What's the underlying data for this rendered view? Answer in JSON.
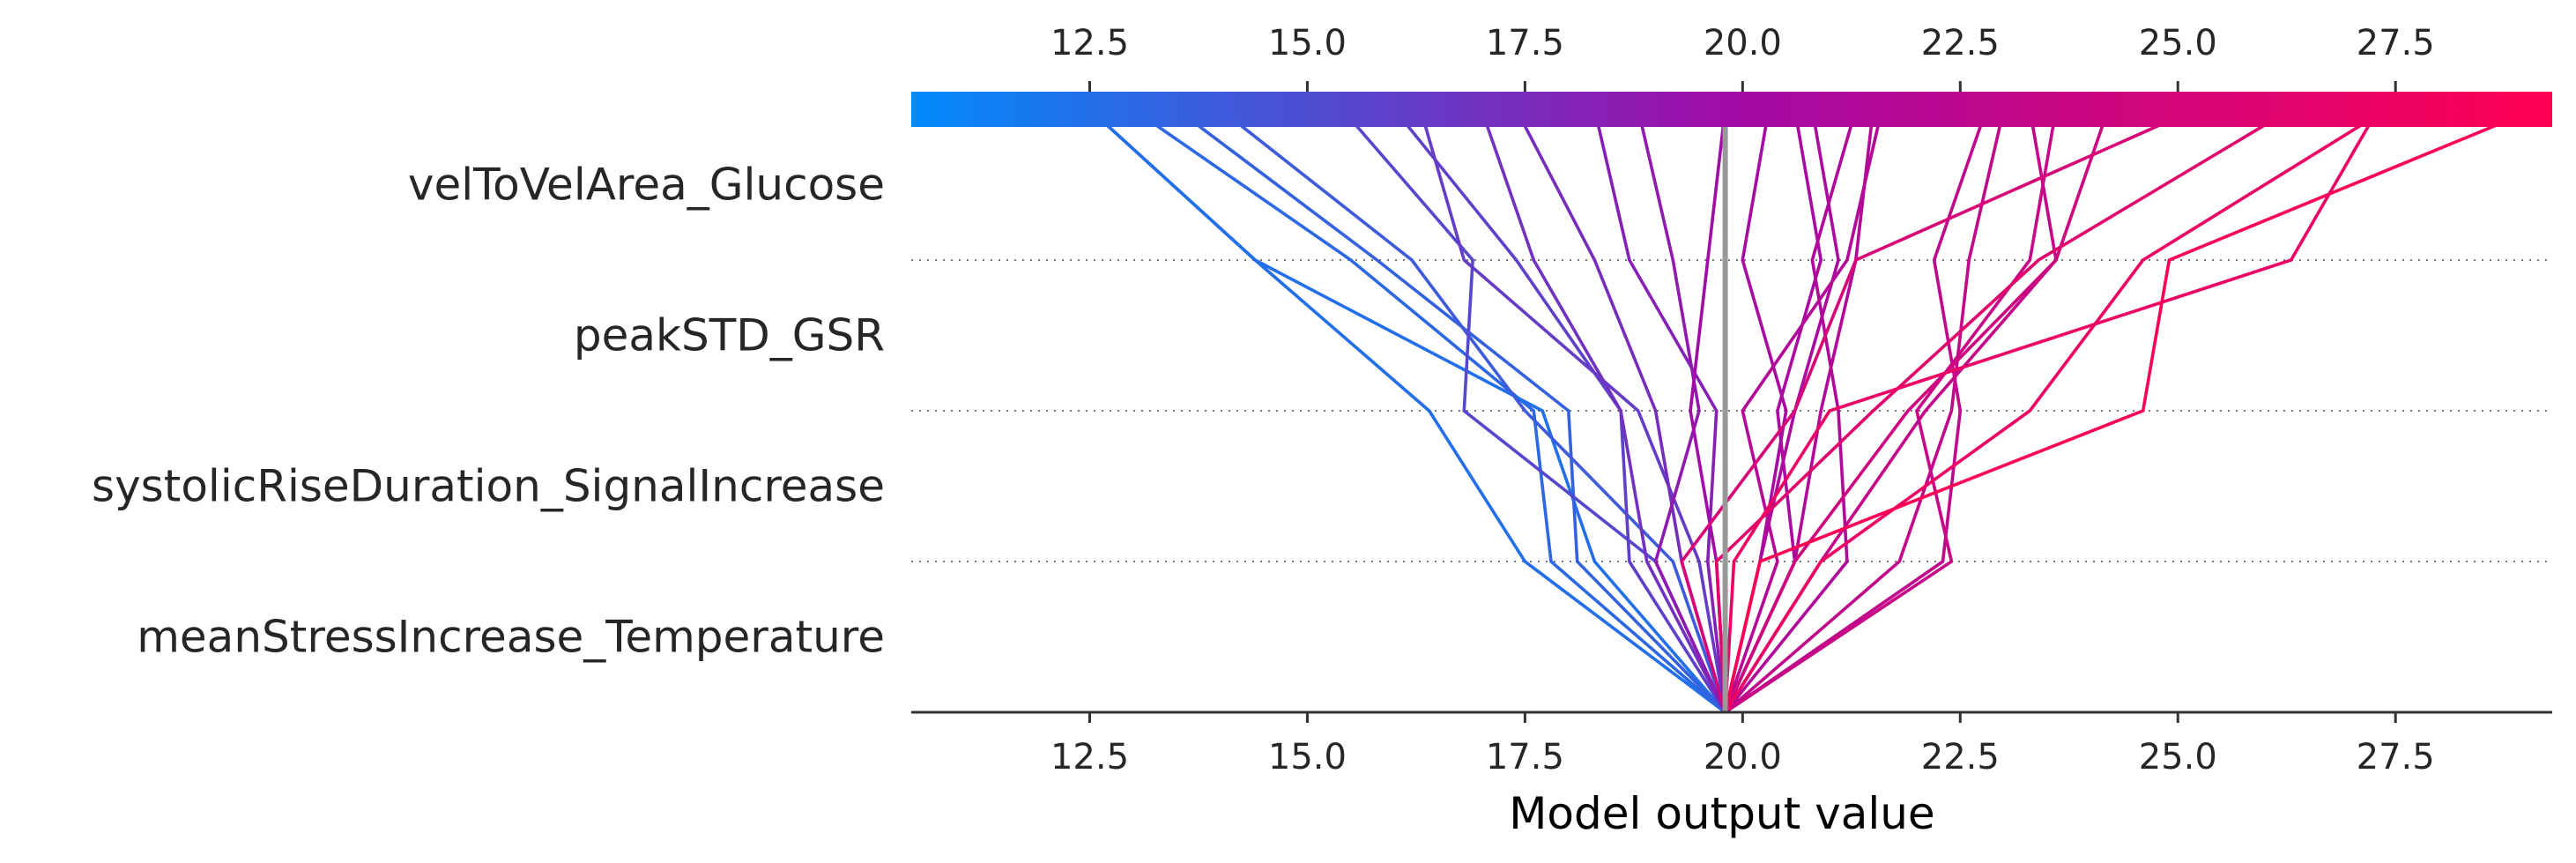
{
  "chart_data": {
    "type": "line",
    "title": "",
    "xlabel": "Model output value",
    "xlim": [
      10.45,
      29.3
    ],
    "ticks": [
      12.5,
      15.0,
      17.5,
      20.0,
      22.5,
      25.0,
      27.5
    ],
    "tick_labels": [
      "12.5",
      "15.0",
      "17.5",
      "20.0",
      "22.5",
      "25.0",
      "27.5"
    ],
    "base_value": 19.8,
    "features": [
      "velToVelArea_Glucose",
      "peakSTD_GSR",
      "systolicRiseDuration_SignalIncrease",
      "meanStressIncrease_Temperature"
    ],
    "colormap": [
      "#008bfb",
      "#a20ba6",
      "#ff0052"
    ],
    "series": [
      {
        "values": [
          19.8,
          17.5,
          16.4,
          14.4,
          12.5
        ]
      },
      {
        "values": [
          19.8,
          17.8,
          17.6,
          15.5,
          13.0
        ]
      },
      {
        "values": [
          19.8,
          18.3,
          17.7,
          14.4,
          12.5
        ]
      },
      {
        "values": [
          19.8,
          18.1,
          18.0,
          15.8,
          13.5
        ]
      },
      {
        "values": [
          19.8,
          19.2,
          17.5,
          16.2,
          14.0
        ]
      },
      {
        "values": [
          19.8,
          19.0,
          16.8,
          16.9,
          15.4
        ]
      },
      {
        "values": [
          19.8,
          18.7,
          18.6,
          17.4,
          16.0
        ]
      },
      {
        "values": [
          19.8,
          19.5,
          18.8,
          16.8,
          16.3
        ]
      },
      {
        "values": [
          19.8,
          18.9,
          18.6,
          17.6,
          17.0
        ]
      },
      {
        "values": [
          19.8,
          19.3,
          19.0,
          18.3,
          17.4
        ]
      },
      {
        "values": [
          19.8,
          19.6,
          19.7,
          18.7,
          18.3
        ]
      },
      {
        "values": [
          19.8,
          19.0,
          19.5,
          19.2,
          18.8
        ]
      },
      {
        "values": [
          19.8,
          19.7,
          19.4,
          19.6,
          19.8
        ]
      },
      {
        "values": [
          19.8,
          20.2,
          20.5,
          20.0,
          20.3
        ]
      },
      {
        "values": [
          19.8,
          20.6,
          20.4,
          20.9,
          20.6
        ]
      },
      {
        "values": [
          19.8,
          20.2,
          20.6,
          21.1,
          20.8
        ]
      },
      {
        "values": [
          19.8,
          21.2,
          21.1,
          20.8,
          21.3
        ]
      },
      {
        "values": [
          19.8,
          20.6,
          20.9,
          21.3,
          21.5
        ]
      },
      {
        "values": [
          19.8,
          20.4,
          20.0,
          21.2,
          21.6
        ]
      },
      {
        "values": [
          19.8,
          22.3,
          22.5,
          22.2,
          22.8
        ]
      },
      {
        "values": [
          19.8,
          21.8,
          22.4,
          22.6,
          23.0
        ]
      },
      {
        "values": [
          19.8,
          20.9,
          22.1,
          23.6,
          23.3
        ]
      },
      {
        "values": [
          19.8,
          22.4,
          22.0,
          23.3,
          23.6
        ]
      },
      {
        "values": [
          19.8,
          20.6,
          21.9,
          23.6,
          24.2
        ]
      },
      {
        "values": [
          19.8,
          19.3,
          20.6,
          21.3,
          25.2
        ]
      },
      {
        "values": [
          19.8,
          19.7,
          21.5,
          23.4,
          26.3
        ]
      },
      {
        "values": [
          19.8,
          20.9,
          23.3,
          24.6,
          27.4
        ]
      },
      {
        "values": [
          19.8,
          20.2,
          24.6,
          24.9,
          29.1
        ]
      },
      {
        "values": [
          19.8,
          19.9,
          21.0,
          26.3,
          27.3
        ]
      }
    ]
  }
}
